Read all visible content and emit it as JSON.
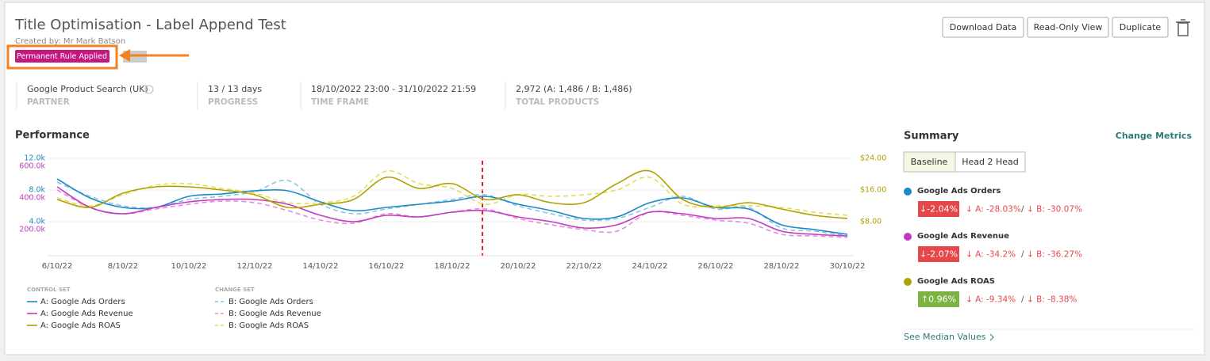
{
  "header": {
    "title": "Title Optimisation - Label Append Test",
    "created_by": "Created by: Mr Mark Batson",
    "badge": "Permanent Rule Applied",
    "buttons": [
      "Download Data",
      "Read-Only View",
      "Duplicate"
    ]
  },
  "info": [
    {
      "value": "Google Product Search (UK)",
      "label": "PARTNER"
    },
    {
      "value": "13 / 13 days",
      "label": "PROGRESS"
    },
    {
      "value": "18/10/2022 23:00 - 31/10/2022 21:59",
      "label": "TIME FRAME"
    },
    {
      "value": "2,972 (A: 1,486 / B: 1,486)",
      "label": "TOTAL PRODUCTS"
    }
  ],
  "chart_data": {
    "type": "line",
    "title": "Performance",
    "categories": [
      "6/10/22",
      null,
      "8/10/22",
      null,
      "10/10/22",
      null,
      "12/10/22",
      null,
      "14/10/22",
      null,
      "16/10/22",
      null,
      "18/10/22",
      null,
      "20/10/22",
      null,
      "22/10/22",
      null,
      "24/10/22",
      null,
      "26/10/22",
      null,
      "28/10/22",
      null,
      "30/10/22"
    ],
    "ylim": [
      0,
      12000
    ],
    "yticks": [
      {
        "value": 4000,
        "label": "4.0k"
      },
      {
        "value": 8000,
        "label": "8.0k"
      },
      {
        "value": 12000,
        "label": "12.0k"
      }
    ],
    "y2lim": [
      50000,
      650000
    ],
    "y2ticks": [
      {
        "value": 200000,
        "label": "200.0k"
      },
      {
        "value": 400000,
        "label": "400.0k"
      },
      {
        "value": 600000,
        "label": "600.0k"
      }
    ],
    "y3lim": [
      0,
      24
    ],
    "y3ticks": [
      {
        "value": 8,
        "label": "$8.00"
      },
      {
        "value": 16,
        "label": "$16.00"
      },
      {
        "value": 24,
        "label": "$24.00"
      }
    ],
    "grid": true,
    "legend_groups": [
      "CONTROL SET",
      "CHANGE SET"
    ],
    "series": [
      {
        "name": "A: Google Ads Orders",
        "color": "#1a8ac6",
        "axis": "y",
        "dashed": false,
        "values": [
          9400,
          7000,
          5800,
          5800,
          7200,
          7500,
          7900,
          7900,
          6500,
          5400,
          5800,
          6200,
          6600,
          7200,
          6200,
          5400,
          4400,
          4600,
          6400,
          7000,
          5800,
          5600,
          3600,
          3000,
          2400
        ]
      },
      {
        "name": "A: Google Ads Revenue",
        "color": "#c03bbf",
        "axis": "y2",
        "dashed": false,
        "values": [
          470000,
          340000,
          300000,
          340000,
          375000,
          390000,
          390000,
          360000,
          290000,
          250000,
          290000,
          280000,
          310000,
          320000,
          280000,
          250000,
          210000,
          230000,
          310000,
          300000,
          270000,
          270000,
          190000,
          170000,
          160000
        ]
      },
      {
        "name": "A: Google Ads ROAS",
        "color": "#b0a000",
        "axis": "y3",
        "dashed": false,
        "values": [
          13.6,
          11.6,
          15.2,
          16.8,
          16.8,
          16,
          14.8,
          11.6,
          12.4,
          13.6,
          19.2,
          16.4,
          17.6,
          13.6,
          14.8,
          12.8,
          12.8,
          17.6,
          20.8,
          13.6,
          11.6,
          12.8,
          11.2,
          9.6,
          8.8
        ]
      },
      {
        "name": "B: Google Ads Orders",
        "color": "#8cc4e6",
        "axis": "y",
        "dashed": true,
        "values": [
          9000,
          7200,
          6000,
          5800,
          6800,
          7200,
          7800,
          9200,
          6200,
          5000,
          5600,
          6200,
          6800,
          7400,
          6000,
          5000,
          4200,
          4400,
          5800,
          7200,
          5600,
          5800,
          3200,
          2800,
          2200
        ]
      },
      {
        "name": "B: Google Ads Revenue",
        "color": "#e88ae0",
        "axis": "y2",
        "dashed": true,
        "values": [
          450000,
          340000,
          300000,
          330000,
          360000,
          380000,
          370000,
          320000,
          260000,
          240000,
          300000,
          280000,
          310000,
          330000,
          270000,
          230000,
          200000,
          190000,
          310000,
          290000,
          260000,
          240000,
          170000,
          160000,
          150000
        ]
      },
      {
        "name": "B: Google Ads ROAS",
        "color": "#e6dc5a",
        "axis": "y3",
        "dashed": true,
        "values": [
          14,
          12,
          14.8,
          17.2,
          17.6,
          16.4,
          15.2,
          12.8,
          12.8,
          14.4,
          20.8,
          17.6,
          16.4,
          12.4,
          14.8,
          14.4,
          14.8,
          16,
          19.2,
          12.4,
          12,
          12,
          11.6,
          10.4,
          9.6
        ]
      }
    ]
  },
  "summary": {
    "title": "Summary",
    "link": "Change Metrics",
    "tabs": [
      "Baseline",
      "Head 2 Head"
    ],
    "metrics": [
      {
        "name": "Google Ads Orders",
        "color": "#1a8ac6",
        "badge": "↓-2.04%",
        "badge_color": "#e5474b",
        "a": "↓ A: -28.03%",
        "b": "↓ B: -30.07%"
      },
      {
        "name": "Google Ads Revenue",
        "color": "#c03bbf",
        "badge": "↓-2.07%",
        "badge_color": "#e5474b",
        "a": "↓ A: -34.2%",
        "b": "↓ B: -36.27%"
      },
      {
        "name": "Google Ads ROAS",
        "color": "#b0a000",
        "badge": "↑0.96%",
        "badge_color": "#7cb342",
        "a": "↓ A: -9.34%",
        "b": "↓ B: -8.38%"
      }
    ],
    "sep": "/",
    "footer": "See Median Values"
  }
}
